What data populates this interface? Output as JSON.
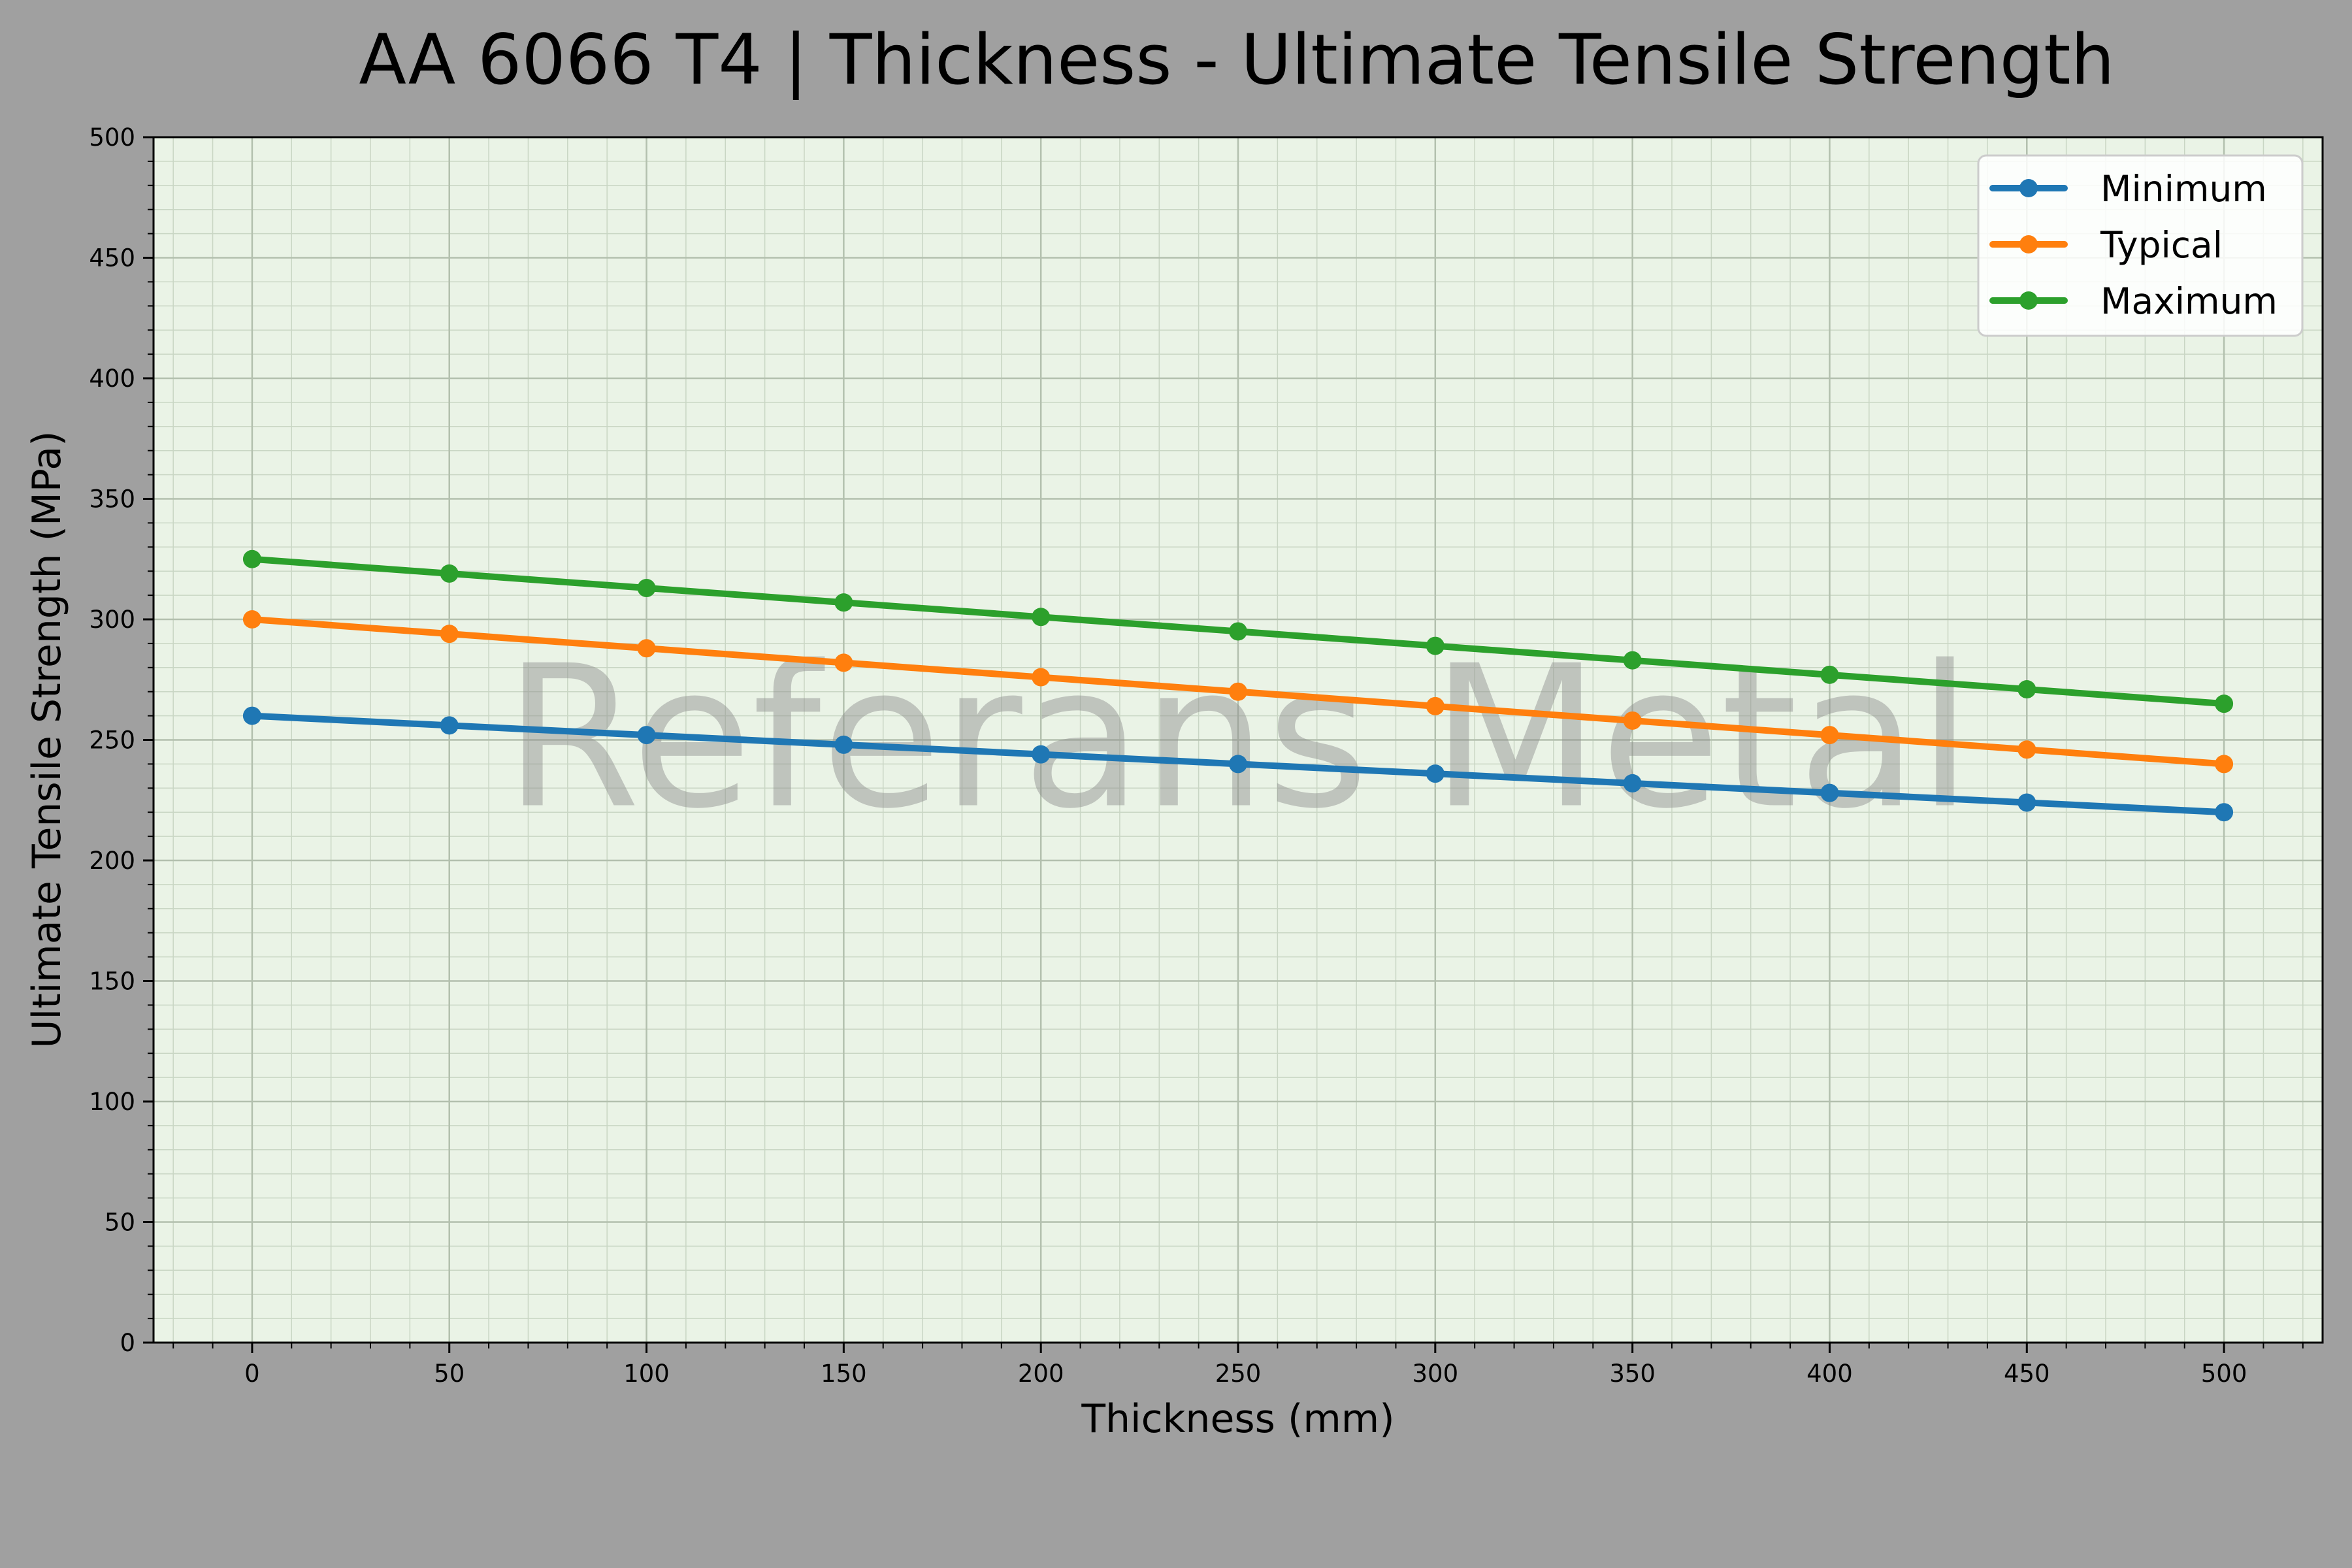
{
  "chart_data": {
    "type": "line",
    "title": "AA 6066 T4 | Thickness - Ultimate Tensile Strength",
    "xlabel": "Thickness (mm)",
    "ylabel": "Ultimate Tensile Strength (MPa)",
    "x": [
      0,
      50,
      100,
      150,
      200,
      250,
      300,
      350,
      400,
      450,
      500
    ],
    "xlim": [
      -25,
      525
    ],
    "ylim": [
      0,
      500
    ],
    "xticks": [
      0,
      50,
      100,
      150,
      200,
      250,
      300,
      350,
      400,
      450,
      500
    ],
    "yticks": [
      0,
      50,
      100,
      150,
      200,
      250,
      300,
      350,
      400,
      450,
      500
    ],
    "grid": true,
    "legend_position": "top-right",
    "watermark": "Referans Metal",
    "series": [
      {
        "name": "Minimum",
        "color": "#1f77b4",
        "values": [
          260,
          256,
          252,
          248,
          244,
          240,
          236,
          232,
          228,
          224,
          220
        ]
      },
      {
        "name": "Typical",
        "color": "#ff7f0e",
        "values": [
          300,
          294,
          288,
          282,
          276,
          270,
          264,
          258,
          252,
          246,
          240
        ]
      },
      {
        "name": "Maximum",
        "color": "#2ca02c",
        "values": [
          325,
          319,
          313,
          307,
          301,
          295,
          289,
          283,
          277,
          271,
          265
        ]
      }
    ]
  }
}
